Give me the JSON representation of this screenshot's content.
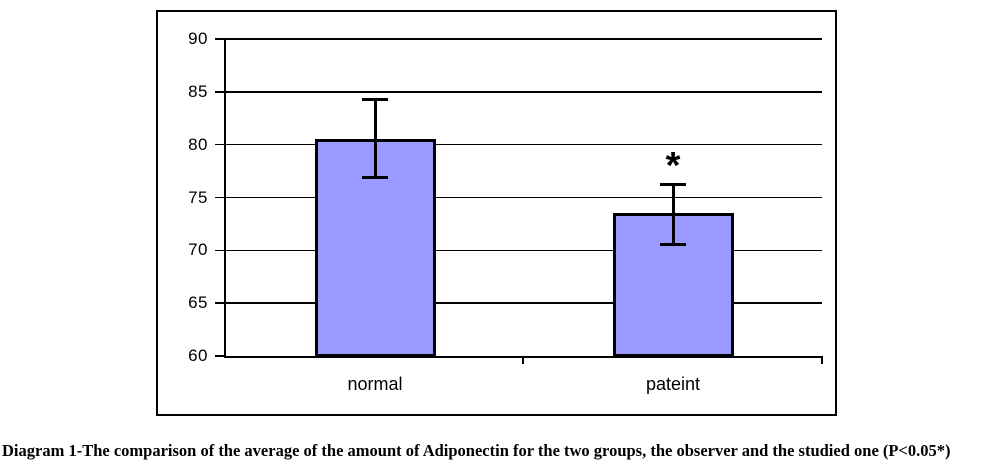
{
  "chart_data": {
    "type": "bar",
    "categories": [
      "normal",
      "pateint"
    ],
    "values": [
      80.5,
      73.5
    ],
    "error_bars": [
      {
        "low": 76.8,
        "high": 84.3
      },
      {
        "low": 70.5,
        "high": 76.3
      }
    ],
    "significance_markers": [
      "",
      "*"
    ],
    "title": "",
    "xlabel": "",
    "ylabel": "",
    "ylim": [
      60,
      90
    ],
    "yticks": [
      60,
      65,
      70,
      75,
      80,
      85,
      90
    ],
    "grid": true,
    "legend": "none",
    "bar_color": "#9999FF",
    "bar_border_color": "#000000",
    "gridline_color": "#000000"
  },
  "caption": "Diagram 1-The comparison of the average of the amount of Adiponectin for the two groups, the observer and the studied one (P<0.05*)"
}
